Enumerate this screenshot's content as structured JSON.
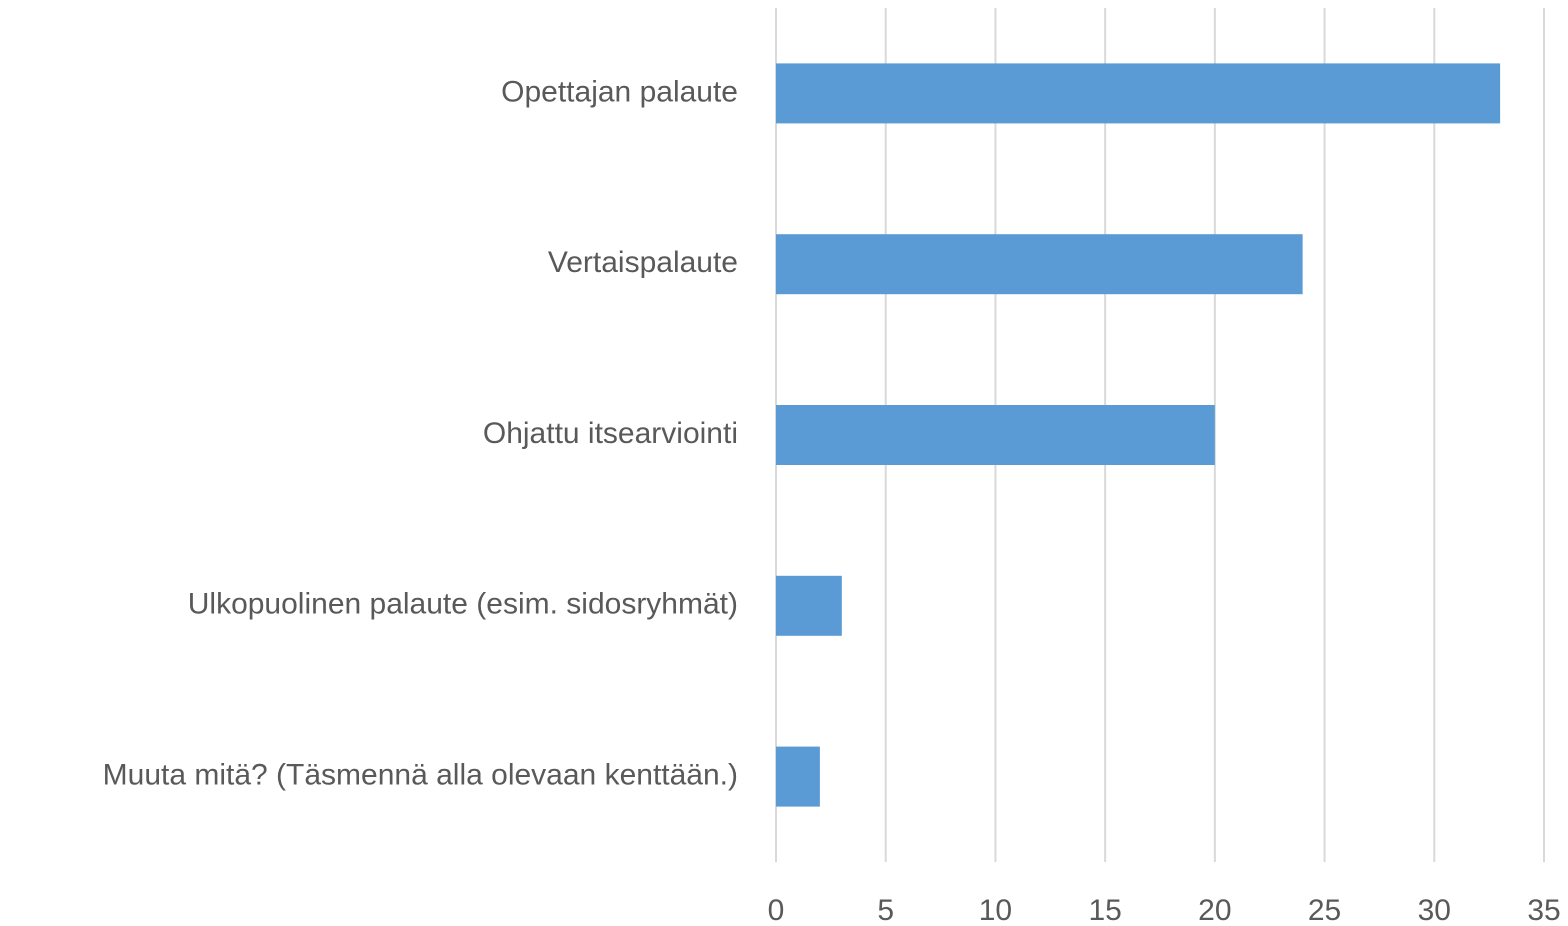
{
  "chart_data": {
    "type": "bar",
    "orientation": "horizontal",
    "categories": [
      "Opettajan palaute",
      "Vertaispalaute",
      "Ohjattu itsearviointi",
      "Ulkopuolinen palaute (esim. sidosryhmät)",
      "Muuta mitä? (Täsmennä alla olevaan kenttään.)"
    ],
    "values": [
      33,
      24,
      20,
      3,
      2
    ],
    "color": "#5b9bd5",
    "xlim": [
      0,
      35
    ],
    "xticks": [
      0,
      5,
      10,
      15,
      20,
      25,
      30,
      35
    ],
    "grid": true
  }
}
